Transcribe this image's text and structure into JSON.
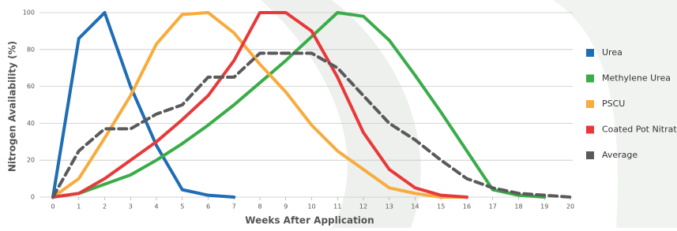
{
  "chart_data": {
    "type": "line",
    "x_label": "Weeks After Application",
    "y_label": "Nitrogen Availability (%)",
    "x": [
      0,
      1,
      2,
      3,
      4,
      5,
      6,
      7,
      8,
      9,
      10,
      11,
      12,
      13,
      14,
      15,
      16,
      17,
      18,
      19,
      20
    ],
    "xlim": [
      0,
      20
    ],
    "xticks": [
      0,
      1,
      2,
      3,
      4,
      5,
      6,
      7,
      8,
      9,
      10,
      11,
      12,
      13,
      14,
      15,
      16,
      17,
      18,
      19,
      20
    ],
    "ylim": [
      0,
      100
    ],
    "yticks": [
      0,
      20,
      40,
      60,
      80,
      100
    ],
    "grid": true,
    "legend": "right",
    "series": [
      {
        "name": "Urea",
        "color": "#1f6db5",
        "values": [
          0,
          86,
          100,
          60,
          28,
          4,
          1,
          0,
          null,
          null,
          null,
          null,
          null,
          null,
          null,
          null,
          null,
          null,
          null,
          null,
          null
        ]
      },
      {
        "name": "Methylene Urea",
        "color": "#3aac48",
        "values": [
          0,
          2,
          7,
          12,
          20,
          29,
          39,
          50,
          62,
          74,
          87,
          100,
          98,
          85,
          66,
          46,
          25,
          4,
          1,
          0,
          null
        ]
      },
      {
        "name": "PSCU",
        "color": "#f7ac3d",
        "values": [
          0,
          10,
          32,
          55,
          83,
          99,
          100,
          89,
          72,
          57,
          39,
          25,
          15,
          5,
          2,
          0,
          0,
          null,
          null,
          null,
          null
        ]
      },
      {
        "name": "Coated Pot Nitrate",
        "color": "#e8393a",
        "values": [
          0,
          2,
          10,
          20,
          30,
          42,
          55,
          74,
          100,
          100,
          90,
          65,
          35,
          15,
          5,
          1,
          0,
          null,
          null,
          null,
          null
        ]
      },
      {
        "name": "Average",
        "color": "#5a5a5a",
        "dashed": true,
        "values": [
          0,
          25,
          37,
          37,
          45,
          50,
          65,
          65,
          78,
          78,
          78,
          70,
          55,
          40,
          31,
          20,
          10,
          5,
          2,
          1,
          0
        ]
      }
    ]
  }
}
